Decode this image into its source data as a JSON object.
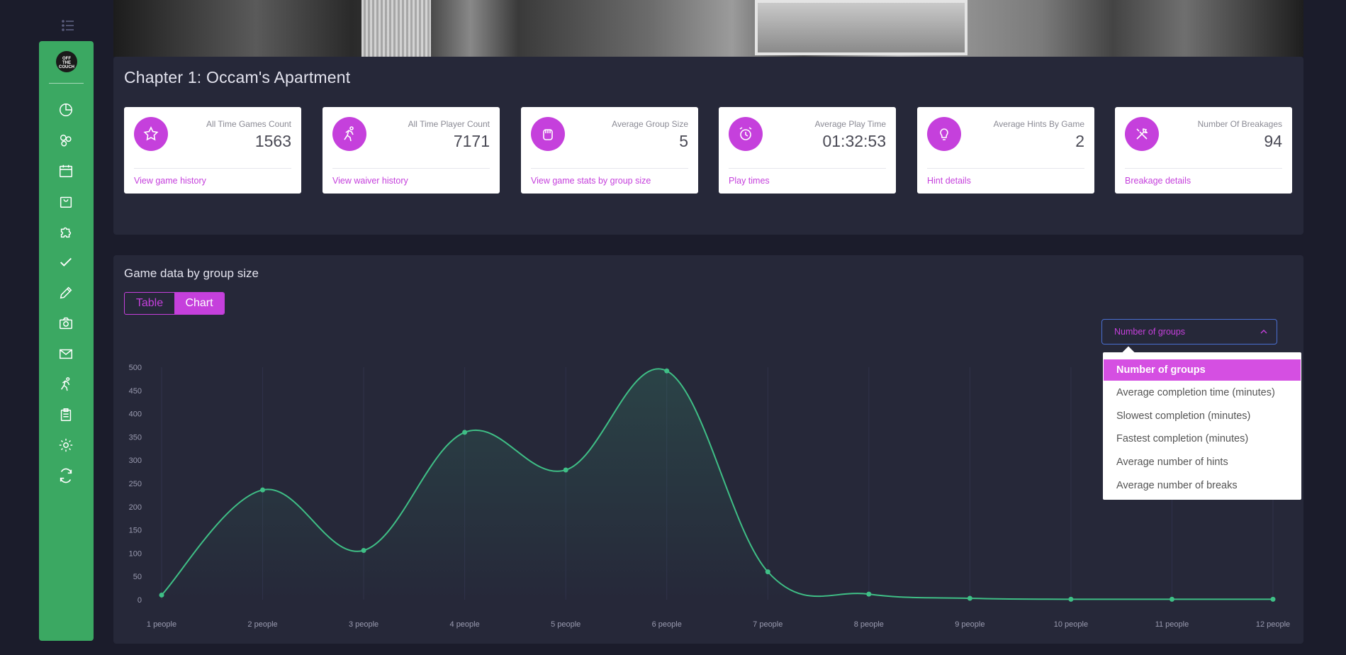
{
  "sidebar": {
    "logo_text": "OFF THE COUCH",
    "icons": [
      "pie-chart-icon",
      "groups-icon",
      "calendar-icon",
      "bag-icon",
      "puzzle-icon",
      "check-icon",
      "pencil-icon",
      "camera-icon",
      "mail-icon",
      "runner-icon",
      "clipboard-icon",
      "gear-icon",
      "refresh-icon"
    ]
  },
  "page": {
    "title": "Chapter 1: Occam's Apartment"
  },
  "stats": [
    {
      "label": "All Time Games Count",
      "value": "1563",
      "link": "View game history",
      "icon": "star-icon"
    },
    {
      "label": "All Time Player Count",
      "value": "7171",
      "link": "View waiver history",
      "icon": "runner-icon"
    },
    {
      "label": "Average Group Size",
      "value": "5",
      "link": "View game stats by group size",
      "icon": "fist-icon"
    },
    {
      "label": "Average Play Time",
      "value": "01:32:53",
      "link": "Play times",
      "icon": "alarm-clock-icon"
    },
    {
      "label": "Average Hints By Game",
      "value": "2",
      "link": "Hint details",
      "icon": "lightbulb-icon"
    },
    {
      "label": "Number Of Breakages",
      "value": "94",
      "link": "Breakage details",
      "icon": "tools-icon"
    }
  ],
  "section": {
    "title": "Game data by group size"
  },
  "view_toggle": {
    "table": "Table",
    "chart": "Chart",
    "active": "Chart"
  },
  "metric_select": {
    "value": "Number of groups",
    "options": [
      "Number of groups",
      "Average completion time (minutes)",
      "Slowest completion (minutes)",
      "Fastest completion (minutes)",
      "Average number of hints",
      "Average number of breaks"
    ]
  },
  "colors": {
    "accent": "#c540dc",
    "sidebar": "#3ba862",
    "line": "#3fbf86",
    "panel": "#262839"
  },
  "chart_data": {
    "type": "line",
    "categories": [
      "1 people",
      "2 people",
      "3 people",
      "4 people",
      "5 people",
      "6 people",
      "7 people",
      "8 people",
      "9 people",
      "10 people",
      "11 people",
      "12 people"
    ],
    "values": [
      10,
      236,
      106,
      360,
      279,
      492,
      60,
      12,
      3,
      1,
      1,
      1
    ],
    "ylim": [
      0,
      500
    ],
    "yticks": [
      0,
      50,
      100,
      150,
      200,
      250,
      300,
      350,
      400,
      450,
      500
    ],
    "smooth": true,
    "grid": "vertical"
  }
}
